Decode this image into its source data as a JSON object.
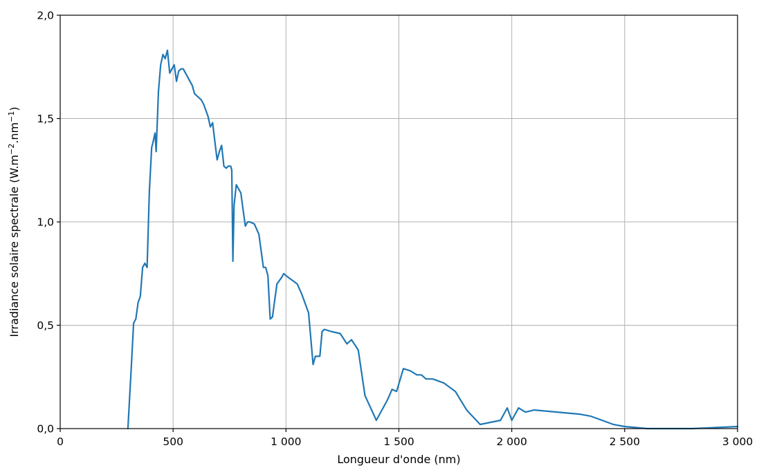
{
  "chart_data": {
    "type": "line",
    "title": "",
    "xlabel": "Longueur d'onde (nm)",
    "ylabel_main": "Irradiance solaire spectrale (W.m",
    "ylabel_exp1": "−2",
    "ylabel_mid": ".nm",
    "ylabel_exp2": "−1",
    "ylabel_end": ")",
    "xlim": [
      0,
      3000
    ],
    "ylim": [
      0,
      2.0
    ],
    "xticks": [
      0,
      500,
      1000,
      1500,
      2000,
      2500,
      3000
    ],
    "xtick_labels": [
      "0",
      "500",
      "1 000",
      "1 500",
      "2 000",
      "2 500",
      "3 000"
    ],
    "yticks": [
      0,
      0.5,
      1.0,
      1.5,
      2.0
    ],
    "ytick_labels": [
      "0,0",
      "0,5",
      "1,0",
      "1,5",
      "2,0"
    ],
    "grid": true,
    "series": [
      {
        "color": "#1f77b4",
        "x": [
          300,
          305,
          315,
          325,
          335,
          345,
          355,
          365,
          375,
          385,
          395,
          405,
          410,
          420,
          425,
          435,
          445,
          455,
          465,
          475,
          485,
          495,
          505,
          515,
          525,
          535,
          545,
          555,
          565,
          575,
          585,
          595,
          605,
          615,
          625,
          635,
          645,
          655,
          665,
          675,
          685,
          695,
          705,
          715,
          725,
          735,
          745,
          755,
          760,
          765,
          770,
          775,
          780,
          790,
          800,
          810,
          820,
          830,
          840,
          860,
          880,
          900,
          910,
          920,
          930,
          940,
          950,
          960,
          980,
          990,
          1000,
          1050,
          1070,
          1100,
          1120,
          1130,
          1150,
          1160,
          1170,
          1200,
          1240,
          1270,
          1290,
          1320,
          1350,
          1400,
          1450,
          1470,
          1490,
          1520,
          1550,
          1580,
          1600,
          1620,
          1650,
          1700,
          1750,
          1800,
          1860,
          1950,
          1980,
          2000,
          2030,
          2060,
          2100,
          2200,
          2300,
          2350,
          2400,
          2450,
          2500,
          2600,
          2700,
          2800,
          3000
        ],
        "values": [
          0.0,
          0.1,
          0.3,
          0.51,
          0.53,
          0.61,
          0.64,
          0.78,
          0.8,
          0.78,
          1.15,
          1.36,
          1.38,
          1.43,
          1.34,
          1.63,
          1.76,
          1.81,
          1.79,
          1.83,
          1.72,
          1.74,
          1.76,
          1.68,
          1.73,
          1.74,
          1.74,
          1.72,
          1.7,
          1.68,
          1.66,
          1.62,
          1.61,
          1.6,
          1.59,
          1.57,
          1.54,
          1.51,
          1.46,
          1.48,
          1.39,
          1.3,
          1.34,
          1.37,
          1.27,
          1.26,
          1.27,
          1.27,
          1.25,
          0.81,
          1.08,
          1.13,
          1.18,
          1.16,
          1.14,
          1.06,
          0.98,
          1.0,
          1.0,
          0.99,
          0.94,
          0.78,
          0.78,
          0.74,
          0.53,
          0.54,
          0.62,
          0.7,
          0.73,
          0.75,
          0.74,
          0.7,
          0.65,
          0.56,
          0.31,
          0.35,
          0.35,
          0.47,
          0.48,
          0.47,
          0.46,
          0.41,
          0.43,
          0.38,
          0.16,
          0.04,
          0.14,
          0.19,
          0.18,
          0.29,
          0.28,
          0.26,
          0.26,
          0.24,
          0.24,
          0.22,
          0.18,
          0.09,
          0.02,
          0.04,
          0.1,
          0.04,
          0.1,
          0.08,
          0.09,
          0.08,
          0.07,
          0.06,
          0.04,
          0.02,
          0.01,
          0.0,
          0.0,
          0.0,
          0.01
        ]
      }
    ]
  }
}
